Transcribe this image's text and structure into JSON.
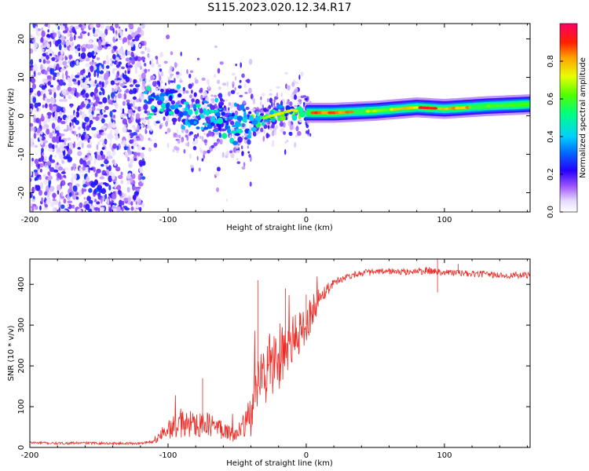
{
  "figure": {
    "title": "S115.2023.020.12.34.R17"
  },
  "chart_data": [
    {
      "type": "heatmap",
      "xlabel": "Height of straight line (km)",
      "ylabel": "Frequency (Hz)",
      "xlim": [
        -200,
        162
      ],
      "ylim": [
        -25,
        24
      ],
      "x_ticks": [
        "-200",
        "-100",
        "0",
        "100"
      ],
      "y_ticks": [
        "-20",
        "-10",
        "0",
        "10",
        "20"
      ],
      "colorbar": {
        "label": "Normalized spectral amplitude",
        "range": [
          0,
          1
        ],
        "ticks": [
          "0.0",
          "0.2",
          "0.4",
          "0.6",
          "0.8"
        ],
        "colors": [
          "#ffffff",
          "#c49bff",
          "#7a00ff",
          "#2b00ff",
          "#00c8ff",
          "#00ff66",
          "#c8ff00",
          "#ffb400",
          "#ff2a00",
          "#ff0066"
        ]
      },
      "description_segments": [
        {
          "x_range": [
            -200,
            -117
          ],
          "pattern": "noise",
          "peak_amplitude": 0.25
        },
        {
          "x_range": [
            -117,
            -40
          ],
          "pattern": "scattered carrier",
          "peak_amplitude": 0.5
        },
        {
          "x_range": [
            -40,
            0
          ],
          "pattern": "wavy carrier",
          "peak_amplitude": 0.65
        },
        {
          "x_range": [
            0,
            162
          ],
          "pattern": "steady carrier",
          "peak_amplitude": 0.95
        }
      ],
      "carrier_track": {
        "x": [
          -117,
          -100,
          -80,
          -60,
          -45,
          -30,
          -20,
          -10,
          0,
          20,
          50,
          80,
          100,
          130,
          162
        ],
        "freq_hz": [
          5,
          3,
          0,
          -1.5,
          -1.8,
          -0.5,
          0.5,
          1.5,
          0.8,
          0.8,
          1.3,
          2.2,
          1.8,
          2.5,
          3
        ]
      }
    },
    {
      "type": "line",
      "xlabel": "Height of straight line (km)",
      "ylabel": "SNR (10 * v/v)",
      "xlim": [
        -200,
        162
      ],
      "ylim": [
        0,
        462
      ],
      "x_ticks": [
        "-200",
        "-100",
        "0",
        "100"
      ],
      "y_ticks": [
        "0",
        "100",
        "200",
        "300",
        "400"
      ],
      "line_color": "#ee2a24",
      "series": [
        {
          "x": [
            -200,
            -180,
            -160,
            -140,
            -120,
            -110,
            -100,
            -90,
            -80,
            -70,
            -60,
            -50,
            -45,
            -40,
            -35,
            -30,
            -25,
            -20,
            -15,
            -10,
            -5,
            0,
            5,
            10,
            20,
            30,
            40,
            50,
            60,
            70,
            80,
            90,
            100,
            110,
            120,
            130,
            140,
            150,
            162
          ],
          "values": [
            12,
            10,
            11,
            10,
            10,
            14,
            45,
            55,
            60,
            55,
            45,
            30,
            50,
            80,
            150,
            190,
            200,
            220,
            240,
            260,
            280,
            300,
            340,
            370,
            405,
            420,
            428,
            430,
            432,
            430,
            432,
            433,
            430,
            428,
            425,
            425,
            422,
            422,
            422
          ],
          "noise": [
            3,
            3,
            3,
            3,
            3,
            4,
            25,
            35,
            35,
            30,
            25,
            20,
            40,
            60,
            80,
            90,
            90,
            80,
            70,
            60,
            55,
            50,
            40,
            25,
            10,
            8,
            8,
            8,
            8,
            8,
            8,
            10,
            8,
            8,
            8,
            8,
            8,
            8,
            8
          ],
          "spikes": [
            [
              -75,
              170
            ],
            [
              -35,
              410
            ],
            [
              -15,
              390
            ],
            [
              0,
              375
            ],
            [
              95,
              465
            ],
            [
              95,
              380
            ],
            [
              110,
              450
            ]
          ]
        }
      ]
    }
  ]
}
